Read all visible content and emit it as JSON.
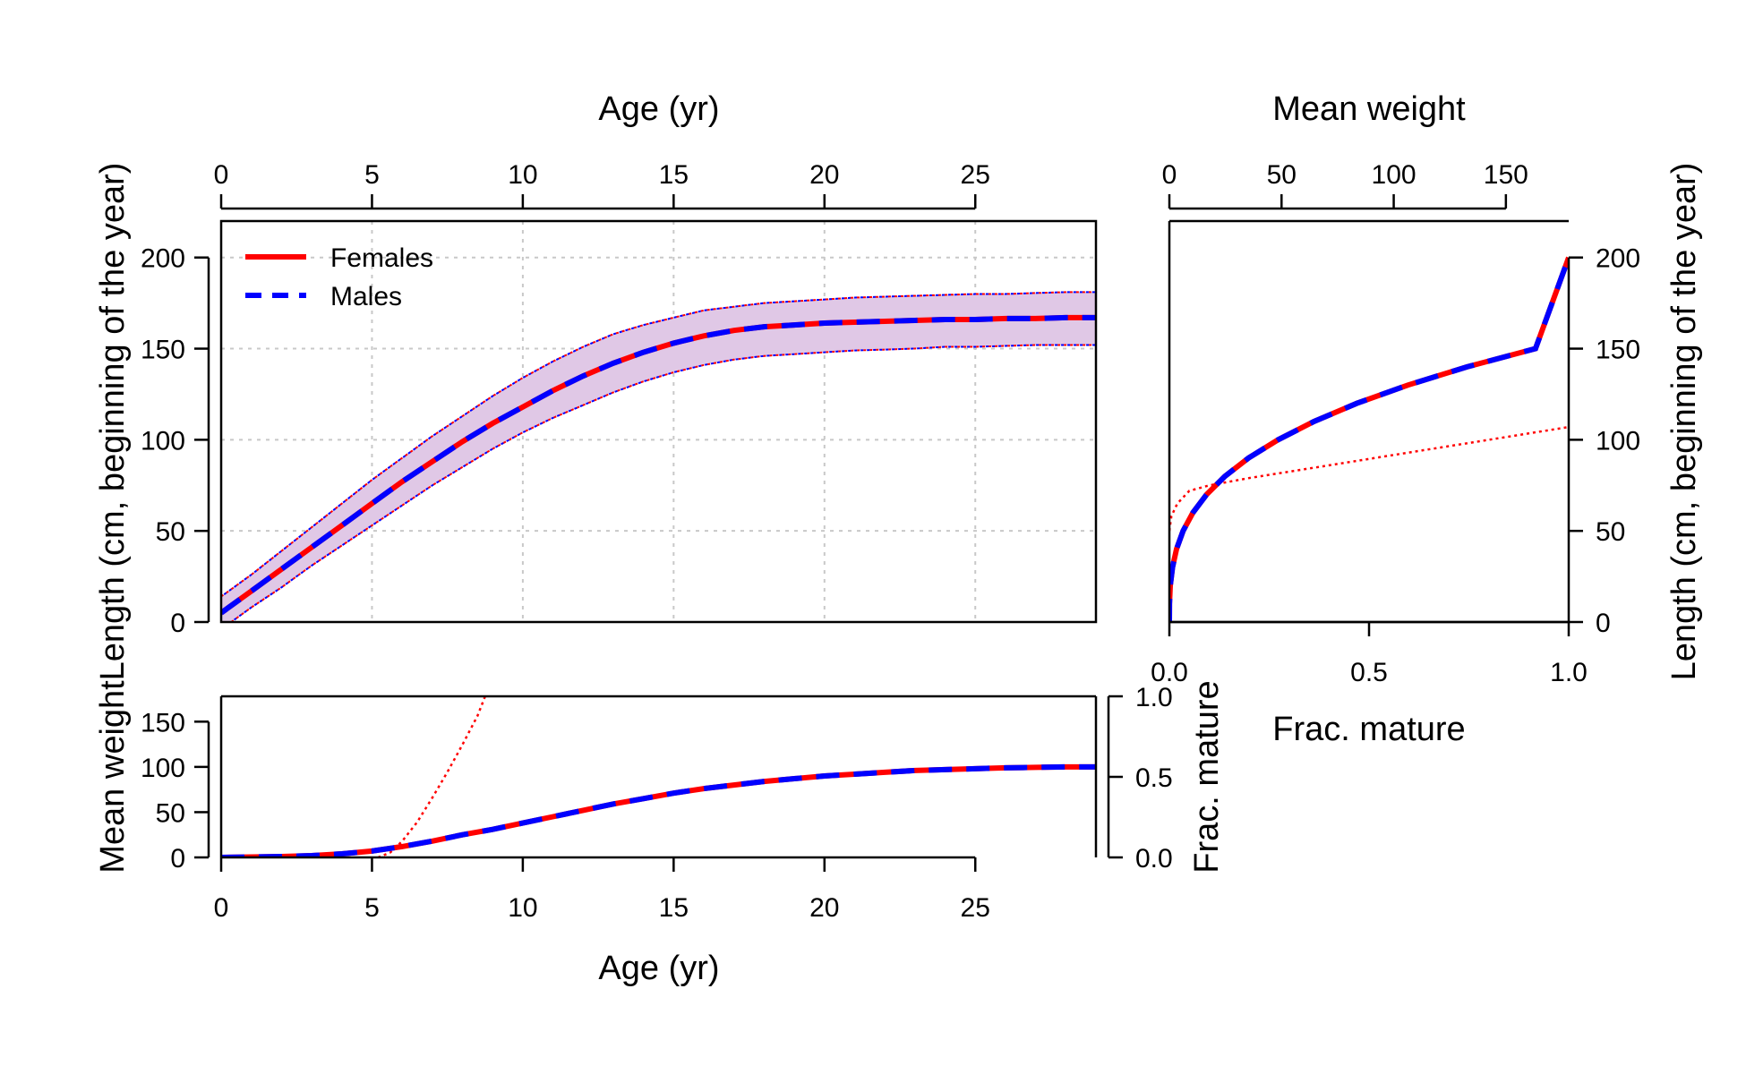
{
  "colors": {
    "females": "#ff0000",
    "males": "#0000ff",
    "band_fill": "#e0c8e6",
    "grid": "#c8c8c8"
  },
  "chart_data": [
    {
      "id": "length_at_age",
      "type": "line",
      "top_axis_label": "Age (yr)",
      "left_axis_label": "Length (cm, beginning of the year)",
      "xlim": [
        0,
        29
      ],
      "ylim": [
        0,
        220
      ],
      "x_ticks": [
        0,
        5,
        10,
        15,
        20,
        25
      ],
      "y_ticks": [
        0,
        50,
        100,
        150,
        200
      ],
      "grid": true,
      "legend_position": "top-left",
      "legend": [
        {
          "label": "Females",
          "style": "solid",
          "color": "#ff0000"
        },
        {
          "label": "Males",
          "style": "dashed",
          "color": "#0000ff"
        }
      ],
      "x": [
        0,
        1,
        2,
        3,
        4,
        5,
        6,
        7,
        8,
        9,
        10,
        11,
        12,
        13,
        14,
        15,
        16,
        17,
        18,
        19,
        20,
        21,
        22,
        23,
        24,
        25,
        26,
        27,
        28,
        29
      ],
      "series": [
        {
          "name": "Females",
          "style": "solid",
          "color": "#ff0000",
          "values": [
            5,
            17,
            29,
            41,
            53,
            65,
            77,
            88,
            99,
            109,
            118,
            127,
            135,
            142,
            148,
            153,
            157,
            160,
            162,
            163,
            164,
            164.5,
            165,
            165.5,
            166,
            166,
            166.5,
            166.5,
            167,
            167
          ]
        },
        {
          "name": "Males",
          "style": "dashed",
          "color": "#0000ff",
          "values": [
            5,
            17,
            29,
            41,
            53,
            65,
            77,
            88,
            99,
            109,
            118,
            127,
            135,
            142,
            148,
            153,
            157,
            160,
            162,
            163,
            164,
            164.5,
            165,
            165.5,
            166,
            166,
            166.5,
            166.5,
            167,
            167
          ]
        }
      ],
      "interval_upper": [
        14,
        26,
        39,
        52,
        65,
        78,
        90,
        102,
        113,
        124,
        134,
        143,
        151,
        158,
        163,
        167,
        171,
        173,
        175,
        176,
        177,
        178,
        178.5,
        179,
        179.5,
        180,
        180,
        180.5,
        181,
        181
      ],
      "interval_lower": [
        -4,
        8,
        19,
        31,
        42,
        53,
        64,
        75,
        85,
        95,
        104,
        112,
        119,
        126,
        132,
        137,
        141,
        144,
        146,
        147,
        148,
        149,
        149.5,
        150,
        151,
        151,
        151.5,
        152,
        152,
        152
      ]
    },
    {
      "id": "length_vs_weight_maturity",
      "type": "line",
      "top_axis_label": "Mean weight",
      "bottom_axis_label": "Frac. mature",
      "right_axis_label": "Length (cm, beginning of the year)",
      "top_xlim": [
        0,
        178
      ],
      "top_x_ticks": [
        0,
        50,
        100,
        150
      ],
      "bottom_xlim": [
        0,
        1
      ],
      "bottom_x_ticks": [
        "0.0",
        "0.5",
        "1.0"
      ],
      "ylim": [
        0,
        220
      ],
      "y_ticks": [
        0,
        50,
        100,
        150,
        200
      ],
      "weight_length_curve": {
        "weight": [
          0,
          0.05,
          0.4,
          1.4,
          3.2,
          6.1,
          10.5,
          16.6,
          24.8,
          35.3,
          48.4,
          64.4,
          83.6,
          106.3,
          132.7,
          163.2,
          178
        ],
        "length": [
          0,
          10,
          20,
          30,
          40,
          50,
          60,
          70,
          80,
          90,
          100,
          110,
          120,
          130,
          140,
          150,
          200
        ],
        "series": [
          {
            "name": "Females",
            "style": "solid",
            "color": "#ff0000"
          },
          {
            "name": "Males",
            "style": "dashed",
            "color": "#0000ff"
          }
        ]
      },
      "maturity_length_curve": {
        "frac_mature": [
          0,
          0.005,
          0.02,
          0.05,
          0.1,
          0.2,
          0.4,
          0.6,
          0.8,
          1.0
        ],
        "length": [
          50,
          58,
          65,
          72,
          75,
          79,
          86,
          93,
          100,
          107
        ],
        "style": "dotted",
        "color": "#ff0000"
      }
    },
    {
      "id": "weight_maturity_at_age",
      "type": "line",
      "bottom_axis_label": "Age (yr)",
      "left_axis_label": "Mean weight",
      "right_axis_label": "Frac. mature",
      "xlim": [
        0,
        29
      ],
      "x_ticks": [
        0,
        5,
        10,
        15,
        20,
        25
      ],
      "left_ylim": [
        0,
        178
      ],
      "left_y_ticks": [
        0,
        50,
        100,
        150
      ],
      "right_ylim": [
        0,
        1
      ],
      "right_y_ticks": [
        "0.0",
        "0.5",
        "1.0"
      ],
      "x": [
        0,
        1,
        2,
        3,
        4,
        5,
        6,
        7,
        8,
        9,
        10,
        11,
        12,
        13,
        14,
        15,
        16,
        17,
        18,
        19,
        20,
        21,
        22,
        23,
        24,
        25,
        26,
        27,
        28,
        29
      ],
      "series": [
        {
          "name": "Females",
          "style": "solid",
          "color": "#ff0000",
          "values": [
            0,
            0.5,
            1,
            2,
            4,
            7,
            12,
            18,
            25,
            31,
            38,
            45,
            52,
            59,
            65,
            71,
            76,
            80,
            84,
            87,
            90,
            92,
            94,
            96,
            97,
            98,
            99,
            99.5,
            100,
            100
          ]
        },
        {
          "name": "Males",
          "style": "dashed",
          "color": "#0000ff",
          "values": [
            0,
            0.5,
            1,
            2,
            4,
            7,
            12,
            18,
            25,
            31,
            38,
            45,
            52,
            59,
            65,
            71,
            76,
            80,
            84,
            87,
            90,
            92,
            94,
            96,
            97,
            98,
            99,
            99.5,
            100,
            100
          ]
        }
      ],
      "maturity": {
        "style": "dotted",
        "color": "#ff0000",
        "x": [
          5.2,
          5.6,
          6.0,
          6.5,
          7.0,
          7.5,
          8.0,
          8.5,
          8.75
        ],
        "frac_mature": [
          0,
          0.03,
          0.1,
          0.22,
          0.37,
          0.53,
          0.7,
          0.88,
          1.0
        ]
      }
    }
  ]
}
